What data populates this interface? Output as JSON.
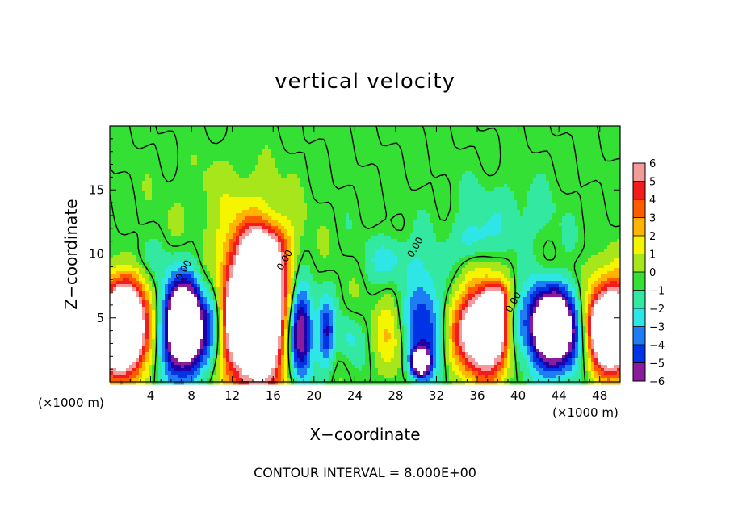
{
  "chart_data": {
    "type": "heatmap",
    "title": "vertical velocity",
    "xlabel": "X−coordinate",
    "ylabel": "Z−coordinate",
    "x_unit_label": "(×1000 m)",
    "footer": "CONTOUR INTERVAL = 8.000E+00",
    "xlim": [
      0,
      50
    ],
    "ylim": [
      0,
      20
    ],
    "x_ticks": [
      4,
      8,
      12,
      16,
      20,
      24,
      28,
      32,
      36,
      40,
      44,
      48
    ],
    "y_ticks": [
      5,
      10,
      15
    ],
    "colorbar": {
      "min": -6,
      "max": 6,
      "tick_labels": [
        "6",
        "5",
        "4",
        "3",
        "2",
        "1",
        "0",
        "−1",
        "−2",
        "−3",
        "−4",
        "−5",
        "−6"
      ]
    },
    "contour_labels": [
      {
        "text": "0.00",
        "x": 7.5,
        "y": 8.6
      },
      {
        "text": "0.00",
        "x": 17.4,
        "y": 9.4
      },
      {
        "text": "0.00",
        "x": 30.2,
        "y": 10.4
      },
      {
        "text": "0.00",
        "x": 39.8,
        "y": 6.1
      }
    ],
    "features": [
      {
        "sign": 1,
        "x": 1.2,
        "z": 4.2,
        "rx": 2.4,
        "rz": 3.4,
        "amp": 16
      },
      {
        "sign": 1,
        "x": 14.2,
        "z": 5.4,
        "rx": 3.4,
        "rz": 6.0,
        "amp": 14
      },
      {
        "sign": 1,
        "x": 36.8,
        "z": 4.0,
        "rx": 2.8,
        "rz": 3.4,
        "amp": 12
      },
      {
        "sign": 1,
        "x": 49.0,
        "z": 4.2,
        "rx": 2.4,
        "rz": 3.4,
        "amp": 14
      },
      {
        "sign": 1,
        "x": 27.4,
        "z": 3.6,
        "rx": 1.4,
        "rz": 3.2,
        "amp": 2.2
      },
      {
        "sign": 1,
        "x": 15.2,
        "z": 10.6,
        "rx": 2.0,
        "rz": 1.8,
        "amp": 3.5
      },
      {
        "sign": 1,
        "x": 37.8,
        "z": 6.6,
        "rx": 1.2,
        "rz": 0.9,
        "amp": 3.0
      },
      {
        "sign": -1,
        "x": 7.4,
        "z": 4.3,
        "rx": 2.2,
        "rz": 3.6,
        "amp": 13
      },
      {
        "sign": -1,
        "x": 43.4,
        "z": 4.2,
        "rx": 2.8,
        "rz": 3.2,
        "amp": 12
      },
      {
        "sign": -1,
        "x": 18.6,
        "z": 4.0,
        "rx": 1.3,
        "rz": 3.8,
        "amp": 9
      },
      {
        "sign": -1,
        "x": 30.8,
        "z": 4.6,
        "rx": 1.8,
        "rz": 4.2,
        "amp": 4.5
      },
      {
        "sign": -1,
        "x": 30.4,
        "z": 1.5,
        "rx": 0.9,
        "rz": 1.1,
        "amp": 9
      },
      {
        "sign": -1,
        "x": 21.2,
        "z": 3.8,
        "rx": 0.8,
        "rz": 2.8,
        "amp": 4.5
      },
      {
        "sign": -1,
        "x": 10.4,
        "z": 5.2,
        "rx": 1.0,
        "rz": 3.6,
        "amp": 3.0
      },
      {
        "sign": -1,
        "x": 39.6,
        "z": 4.4,
        "rx": 1.0,
        "rz": 2.6,
        "amp": 3.0
      },
      {
        "sign": -1,
        "x": 27.6,
        "z": 9.6,
        "rx": 2.2,
        "rz": 1.8,
        "amp": 2.0
      },
      {
        "sign": -1,
        "x": 35.4,
        "z": 11.0,
        "rx": 1.6,
        "rz": 1.6,
        "amp": 1.8
      },
      {
        "sign": -1,
        "x": 38.5,
        "z": 13.2,
        "rx": 5.0,
        "rz": 3.0,
        "amp": 1.3
      },
      {
        "sign": -1,
        "x": 23.4,
        "z": 3.4,
        "rx": 1.2,
        "rz": 1.6,
        "amp": 1.5
      },
      {
        "sign": -1,
        "x": 2.2,
        "z": 9.4,
        "rx": 2.8,
        "rz": 1.4,
        "amp": 0.8
      },
      {
        "sign": 1,
        "x": 11.0,
        "z": 15.0,
        "rx": 6.0,
        "rz": 3.5,
        "amp": 0.8
      },
      {
        "sign": 1,
        "x": 45.0,
        "z": 8.8,
        "rx": 3.0,
        "rz": 1.4,
        "amp": 0.6
      }
    ],
    "colors": {
      "-6": "#8a1c9c",
      "-5": "#1f00a8",
      "-4": "#0033e6",
      "-3": "#1e7df5",
      "-2": "#2ee6e6",
      "-1": "#33e8a0",
      "0": "#33e033",
      "1": "#a8e61c",
      "2": "#f5f500",
      "3": "#ffb400",
      "4": "#ff5a00",
      "5": "#f21c1c",
      "6": "#f49a9a"
    }
  }
}
